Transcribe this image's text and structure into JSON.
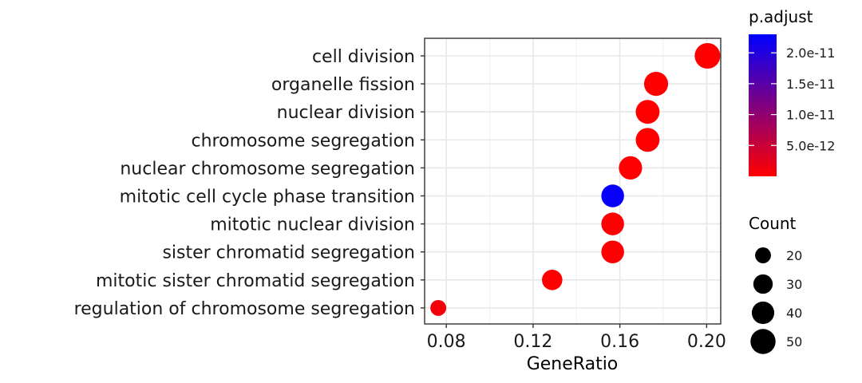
{
  "chart_data": {
    "type": "scatter",
    "xlabel": "GeneRatio",
    "ylabel": "",
    "xlim": [
      0.07,
      0.2065
    ],
    "xticks": [
      0.08,
      0.12,
      0.16,
      0.2
    ],
    "xtick_labels": [
      "0.08",
      "0.12",
      "0.16",
      "0.20"
    ],
    "grid": true,
    "categories": [
      "cell division",
      "organelle fission",
      "nuclear division",
      "chromosome segregation",
      "nuclear chromosome segregation",
      "mitotic cell cycle phase transition",
      "mitotic nuclear division",
      "sister chromatid segregation",
      "mitotic sister chromatid segregation",
      "regulation of chromosome segregation"
    ],
    "points": [
      {
        "term": "cell division",
        "gene_ratio": 0.2004,
        "count": 52,
        "p_adjust": 1e-15
      },
      {
        "term": "organelle fission",
        "gene_ratio": 0.1767,
        "count": 46,
        "p_adjust": 2e-14
      },
      {
        "term": "nuclear division",
        "gene_ratio": 0.1728,
        "count": 45,
        "p_adjust": 2e-14
      },
      {
        "term": "chromosome segregation",
        "gene_ratio": 0.1728,
        "count": 45,
        "p_adjust": 2e-14
      },
      {
        "term": "nuclear chromosome segregation",
        "gene_ratio": 0.1649,
        "count": 43,
        "p_adjust": 1e-13
      },
      {
        "term": "mitotic cell cycle phase transition",
        "gene_ratio": 0.1567,
        "count": 41,
        "p_adjust": 2.25e-11
      },
      {
        "term": "mitotic nuclear division",
        "gene_ratio": 0.1567,
        "count": 41,
        "p_adjust": 5e-14
      },
      {
        "term": "sister chromatid segregation",
        "gene_ratio": 0.1567,
        "count": 41,
        "p_adjust": 1e-13
      },
      {
        "term": "mitotic sister chromatid segregation",
        "gene_ratio": 0.1288,
        "count": 33,
        "p_adjust": 1e-13
      },
      {
        "term": "regulation of chromosome segregation",
        "gene_ratio": 0.0763,
        "count": 20,
        "p_adjust": 1e-12
      }
    ],
    "color_legend": {
      "title": "p.adjust",
      "min": 0,
      "max": 2.3e-11,
      "low_color": "#ff0000",
      "high_color": "#0000ff",
      "ticks": [
        2e-11,
        1.5e-11,
        1e-11,
        5e-12
      ],
      "tick_labels": [
        "2.0e-11",
        "1.5e-11",
        "1.0e-11",
        "5.0e-12"
      ]
    },
    "size_legend": {
      "title": "Count",
      "values": [
        20,
        30,
        40,
        50
      ],
      "labels": [
        "20",
        "30",
        "40",
        "50"
      ],
      "symbol_color": "#000000"
    }
  }
}
